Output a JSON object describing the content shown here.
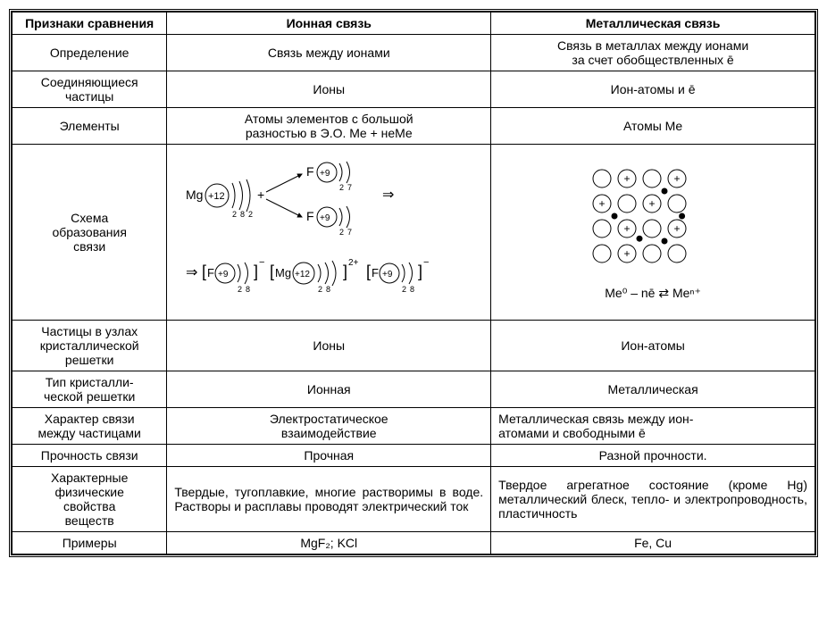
{
  "headers": {
    "col1": "Признаки сравнения",
    "col2": "Ионная связь",
    "col3": "Металлическая связь"
  },
  "rows": {
    "definition_label": "Определение",
    "definition_ionic": "Связь между ионами",
    "definition_metallic_l1": "Связь в металлах между ионами",
    "definition_metallic_l2": "за счет обобществленных ē",
    "particles_label_l1": "Соединяющиеся",
    "particles_label_l2": "частицы",
    "particles_ionic": "Ионы",
    "particles_metallic": "Ион-атомы и ē",
    "elements_label": "Элементы",
    "elements_ionic_l1": "Атомы элементов с большой",
    "elements_ionic_l2": "разностью в Э.О. Me + неMe",
    "elements_metallic": "Атомы Me",
    "scheme_label_l1": "Схема",
    "scheme_label_l2": "образования",
    "scheme_label_l3": "связи",
    "scheme_metallic_formula": "Me⁰ – nē ⇄ Meⁿ⁺",
    "lattice_label_l1": "Частицы в узлах",
    "lattice_label_l2": "кристаллической",
    "lattice_label_l3": "решетки",
    "lattice_ionic": "Ионы",
    "lattice_metallic": "Ион-атомы",
    "crystal_label_l1": "Тип кристалли-",
    "crystal_label_l2": "ческой решетки",
    "crystal_ionic": "Ионная",
    "crystal_metallic": "Металлическая",
    "bond_label_l1": "Характер связи",
    "bond_label_l2": "между частицами",
    "bond_ionic_l1": "Электростатическое",
    "bond_ionic_l2": "взаимодействие",
    "bond_metallic_l1": "Металлическая связь между ион-",
    "bond_metallic_l2": "атомами и свободными ē",
    "strength_label": "Прочность связи",
    "strength_ionic": "Прочная",
    "strength_metallic": "Разной прочности.",
    "phys_label_l1": "Характерные",
    "phys_label_l2": "физические",
    "phys_label_l3": "свойства",
    "phys_label_l4": "веществ",
    "phys_ionic": "Твердые, тугоплавкие, многие растворимы в воде. Растворы и расплавы проводят электрический ток",
    "phys_metallic": "Твердое агрегатное состояние (кроме Hg) металлический блеск, тепло- и электропроводность, пластичность",
    "examples_label": "Примеры",
    "examples_ionic": "MgF₂; KCl",
    "examples_metallic": "Fe, Cu"
  },
  "ionic_diagram": {
    "mg_label": "Mg",
    "mg_charge": "+12",
    "mg_shells": [
      "2",
      "8",
      "2"
    ],
    "f_label": "F",
    "f_charge": "+9",
    "f_shells": [
      "2",
      "7"
    ],
    "arrow": "⇒",
    "product_mg_charge_out": "2+",
    "product_f_charge_out": "−"
  },
  "metallic_diagram": {
    "rows": 4,
    "cols": 4,
    "circle_radius": 10,
    "spacing": 28,
    "plus_positions": [
      [
        0,
        1
      ],
      [
        0,
        3
      ],
      [
        1,
        0
      ],
      [
        1,
        2
      ],
      [
        2,
        1
      ],
      [
        2,
        3
      ],
      [
        3,
        1
      ]
    ],
    "electron_positions": [
      [
        0.5,
        2.5
      ],
      [
        1.5,
        0.5
      ],
      [
        1.5,
        3.2
      ],
      [
        2.4,
        1.5
      ],
      [
        2.5,
        2.5
      ]
    ],
    "stroke_color": "#000000",
    "fill_color": "#ffffff",
    "electron_color": "#000000"
  },
  "colors": {
    "text": "#000000",
    "background": "#ffffff",
    "border": "#000000"
  }
}
